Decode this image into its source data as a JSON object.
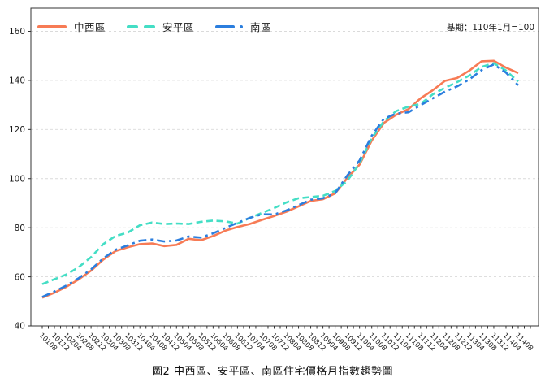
{
  "title": "圖2 中西區、安平區、南區住宅價格月指數趨勢圖",
  "base_note": "基期：110年1月=100",
  "colors": {
    "zhongxi": "#F77B55",
    "anping": "#44DEC5",
    "nan": "#2B7EDE",
    "grid": "#dadada",
    "axis": "#333333",
    "text": "#1a1a1a"
  },
  "chart_data": {
    "type": "line",
    "title": "圖2 中西區、安平區、南區住宅價格月指數趨勢圖",
    "annotation": "基期：110年1月=100",
    "xlabel": "",
    "ylabel": "",
    "ylim": [
      40,
      160
    ],
    "yticks": [
      40,
      60,
      80,
      100,
      120,
      140,
      160
    ],
    "grid": true,
    "legend_position": "top-left",
    "categories": [
      "10108",
      "10112",
      "10204",
      "10208",
      "10212",
      "10304",
      "10308",
      "10312",
      "10404",
      "10408",
      "10412",
      "10504",
      "10508",
      "10512",
      "10604",
      "10608",
      "10612",
      "10704",
      "10708",
      "10712",
      "10804",
      "10808",
      "10812",
      "10904",
      "10908",
      "10912",
      "11004",
      "11008",
      "11012",
      "11104",
      "11108",
      "11112",
      "11204",
      "11208",
      "11212",
      "11304",
      "11308",
      "11312",
      "11404",
      "11408"
    ],
    "series": [
      {
        "name": "中西區",
        "color": "#F77B55",
        "dash": "solid",
        "values": [
          51.5,
          53.5,
          56,
          59,
          62.5,
          67,
          70.5,
          72,
          73.3,
          73.6,
          72.5,
          73,
          75.5,
          74.9,
          76.6,
          78.8,
          80.3,
          81.5,
          83.2,
          84.8,
          86.5,
          88.7,
          90.9,
          91.6,
          94,
          100.2,
          105.7,
          115.5,
          122.7,
          126,
          128.3,
          132.7,
          136,
          139.8,
          141,
          144,
          147.8,
          148,
          145.2,
          143
        ]
      },
      {
        "name": "安平區",
        "color": "#44DEC5",
        "dash": "dashed",
        "values": [
          57,
          59,
          61,
          64,
          68,
          73.3,
          76.6,
          78,
          81,
          82.1,
          81.5,
          81.7,
          81.5,
          82.4,
          82.9,
          82.6,
          81.7,
          84,
          86,
          88,
          90.3,
          92,
          92.5,
          93,
          95,
          99.1,
          106.2,
          116.5,
          123.4,
          127.5,
          129.3,
          130.4,
          134.3,
          137,
          139.3,
          142,
          145.5,
          147,
          144,
          139.5
        ]
      },
      {
        "name": "南區",
        "color": "#2B7EDE",
        "dash": "dashdot",
        "values": [
          51.8,
          54,
          56.5,
          59.5,
          63,
          67.5,
          71,
          72.8,
          74.7,
          75.2,
          74.4,
          74.8,
          76.4,
          76,
          77.7,
          79.9,
          82,
          84,
          85.5,
          85.4,
          87,
          89.2,
          91.4,
          92,
          94,
          101.3,
          107.4,
          117.5,
          124.4,
          126.5,
          127,
          129.9,
          132.7,
          135.4,
          137.6,
          140.4,
          144.2,
          146.5,
          143.2,
          138
        ]
      }
    ]
  }
}
